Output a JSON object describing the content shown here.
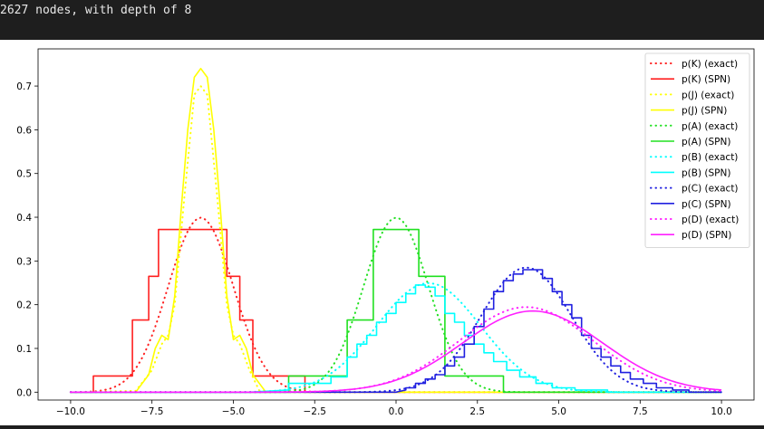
{
  "console": {
    "output": "2627 nodes, with depth of 8"
  },
  "chart_data": {
    "type": "line",
    "xlim": [
      -11,
      11
    ],
    "ylim": [
      -0.018,
      0.785
    ],
    "grid": false,
    "legend_position": "top-right",
    "x_ticks": [
      -10.0,
      -7.5,
      -5.0,
      -2.5,
      0.0,
      2.5,
      5.0,
      7.5,
      10.0
    ],
    "x_tick_labels": [
      "−10.0",
      "−7.5",
      "−5.0",
      "−2.5",
      "0.0",
      "2.5",
      "5.0",
      "7.5",
      "10.0"
    ],
    "y_ticks": [
      0.0,
      0.1,
      0.2,
      0.3,
      0.4,
      0.5,
      0.6,
      0.7
    ],
    "y_tick_labels": [
      "0.0",
      "0.1",
      "0.2",
      "0.3",
      "0.4",
      "0.5",
      "0.6",
      "0.7"
    ],
    "series": [
      {
        "name": "p(K) (exact)",
        "color": "#ff2020",
        "style": "dotted",
        "distribution": "normal",
        "mean": -6.0,
        "std": 1.0
      },
      {
        "name": "p(K) (SPN)",
        "color": "#ff2020",
        "style": "solid",
        "x": [
          -10,
          -9.3,
          -9.3,
          -8.1,
          -8.1,
          -7.6,
          -7.6,
          -7.3,
          -7.3,
          -6.9,
          -6.9,
          -6.0,
          -6.0,
          -5.2,
          -5.2,
          -4.8,
          -4.8,
          -4.4,
          -4.4,
          -3.9,
          -3.9,
          -2.8,
          -2.8,
          10
        ],
        "y": [
          0,
          0,
          0.037,
          0.037,
          0.165,
          0.165,
          0.265,
          0.265,
          0.372,
          0.372,
          0.372,
          0.372,
          0.372,
          0.372,
          0.265,
          0.265,
          0.165,
          0.165,
          0.037,
          0.037,
          0.037,
          0.037,
          0,
          0
        ]
      },
      {
        "name": "p(J) (exact)",
        "color": "#ffff00",
        "style": "dotted",
        "x": [
          -10,
          -8.0,
          -7.5,
          -7.2,
          -7.0,
          -6.8,
          -6.5,
          -6.2,
          -6.0,
          -5.8,
          -5.5,
          -5.2,
          -5.0,
          -4.8,
          -4.5,
          -4.2,
          -3.5,
          10
        ],
        "y": [
          0,
          0.003,
          0.05,
          0.11,
          0.13,
          0.2,
          0.45,
          0.68,
          0.7,
          0.68,
          0.45,
          0.2,
          0.13,
          0.11,
          0.05,
          0.003,
          0,
          0
        ]
      },
      {
        "name": "p(J) (SPN)",
        "color": "#ffff00",
        "style": "solid",
        "x": [
          -10,
          -8.0,
          -7.6,
          -7.4,
          -7.2,
          -7.0,
          -6.8,
          -6.6,
          -6.4,
          -6.2,
          -6.0,
          -5.8,
          -5.6,
          -5.4,
          -5.2,
          -5.0,
          -4.8,
          -4.6,
          -4.4,
          -4.0,
          10
        ],
        "y": [
          0,
          0.0,
          0.04,
          0.1,
          0.13,
          0.12,
          0.22,
          0.42,
          0.6,
          0.72,
          0.74,
          0.72,
          0.6,
          0.42,
          0.22,
          0.12,
          0.13,
          0.1,
          0.04,
          0.0,
          0
        ]
      },
      {
        "name": "p(A) (exact)",
        "color": "#20e020",
        "style": "dotted",
        "distribution": "normal",
        "mean": 0.0,
        "std": 1.0
      },
      {
        "name": "p(A) (SPN)",
        "color": "#20e020",
        "style": "solid",
        "x": [
          -10,
          -3.3,
          -3.3,
          -1.5,
          -1.5,
          -0.7,
          -0.7,
          -0.7,
          -0.7,
          0.7,
          0.7,
          1.5,
          1.5,
          3.3,
          3.3,
          10
        ],
        "y": [
          0,
          0,
          0.037,
          0.037,
          0.165,
          0.165,
          0.265,
          0.265,
          0.372,
          0.372,
          0.265,
          0.265,
          0.037,
          0.037,
          0,
          0
        ]
      },
      {
        "name": "p(B) (exact)",
        "color": "#00ffff",
        "style": "dotted",
        "distribution": "normal",
        "mean": 1.0,
        "std": 1.6
      },
      {
        "name": "p(B) (SPN)",
        "color": "#00ffff",
        "style": "solid",
        "x": [
          -10,
          -4.5,
          -3.3,
          -3.3,
          -2.0,
          -2.0,
          -1.5,
          -1.5,
          -1.2,
          -1.2,
          -0.9,
          -0.9,
          -0.6,
          -0.6,
          -0.3,
          -0.3,
          0.0,
          0.0,
          0.3,
          0.3,
          0.6,
          0.6,
          0.9,
          0.9,
          1.2,
          1.2,
          1.5,
          1.5,
          1.8,
          1.8,
          2.1,
          2.1,
          2.4,
          2.4,
          2.7,
          2.7,
          3.0,
          3.0,
          3.4,
          3.4,
          3.8,
          3.8,
          4.3,
          4.3,
          4.8,
          4.8,
          5.5,
          5.5,
          6.5,
          6.5,
          10
        ],
        "y": [
          0,
          0,
          0.005,
          0.02,
          0.02,
          0.035,
          0.035,
          0.08,
          0.08,
          0.11,
          0.11,
          0.13,
          0.13,
          0.16,
          0.16,
          0.18,
          0.18,
          0.205,
          0.205,
          0.225,
          0.225,
          0.245,
          0.245,
          0.24,
          0.24,
          0.22,
          0.22,
          0.18,
          0.18,
          0.16,
          0.16,
          0.13,
          0.13,
          0.11,
          0.11,
          0.09,
          0.09,
          0.07,
          0.07,
          0.05,
          0.05,
          0.035,
          0.035,
          0.02,
          0.02,
          0.01,
          0.01,
          0.005,
          0.005,
          0,
          0
        ]
      },
      {
        "name": "p(C) (exact)",
        "color": "#2020e0",
        "style": "dotted",
        "distribution": "normal",
        "mean": 4.0,
        "std": 1.4
      },
      {
        "name": "p(C) (SPN)",
        "color": "#2020e0",
        "style": "solid",
        "x": [
          -10,
          0.0,
          0.3,
          0.3,
          0.6,
          0.6,
          0.9,
          0.9,
          1.2,
          1.2,
          1.5,
          1.5,
          1.8,
          1.8,
          2.1,
          2.1,
          2.4,
          2.4,
          2.7,
          2.7,
          3.0,
          3.0,
          3.3,
          3.3,
          3.6,
          3.6,
          3.9,
          3.9,
          4.5,
          4.5,
          4.8,
          4.8,
          5.1,
          5.1,
          5.4,
          5.4,
          5.7,
          5.7,
          6.0,
          6.0,
          6.3,
          6.3,
          6.6,
          6.6,
          6.9,
          6.9,
          7.2,
          7.2,
          7.6,
          7.6,
          8.0,
          8.0,
          8.5,
          8.5,
          9.0,
          9.0,
          10
        ],
        "y": [
          0,
          0,
          0.005,
          0.01,
          0.01,
          0.02,
          0.02,
          0.03,
          0.03,
          0.04,
          0.04,
          0.06,
          0.06,
          0.08,
          0.08,
          0.11,
          0.11,
          0.15,
          0.15,
          0.19,
          0.19,
          0.23,
          0.23,
          0.255,
          0.255,
          0.27,
          0.27,
          0.28,
          0.28,
          0.26,
          0.26,
          0.23,
          0.23,
          0.2,
          0.2,
          0.17,
          0.17,
          0.13,
          0.13,
          0.1,
          0.1,
          0.08,
          0.08,
          0.06,
          0.06,
          0.045,
          0.045,
          0.03,
          0.03,
          0.02,
          0.02,
          0.01,
          0.01,
          0.005,
          0.005,
          0.0,
          0
        ]
      },
      {
        "name": "p(D) (exact)",
        "color": "#ff20ff",
        "style": "dotted",
        "distribution": "normal",
        "mean": 4.0,
        "std": 2.05
      },
      {
        "name": "p(D) (SPN)",
        "color": "#ff20ff",
        "style": "solid",
        "distribution": "normal",
        "mean": 4.2,
        "std": 2.15
      }
    ]
  }
}
